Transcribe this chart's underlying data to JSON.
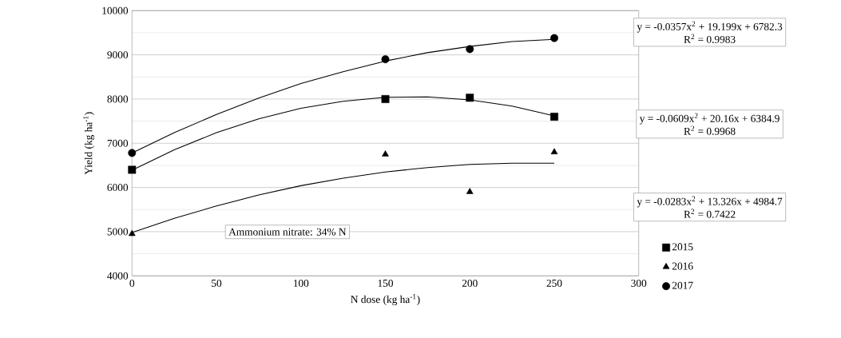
{
  "chart_data": {
    "type": "scatter",
    "xlabel": "N dose (kg ha$^{-1}$)",
    "ylabel": "Yield (kg ha$^{-1}$)",
    "xlim": [
      0,
      300
    ],
    "ylim": [
      4000,
      10000
    ],
    "xticks": [
      0,
      50,
      100,
      150,
      200,
      250,
      300
    ],
    "yticks": [
      4000,
      5000,
      6000,
      7000,
      8000,
      9000,
      10000
    ],
    "grid": "y",
    "legend": "right",
    "series": [
      {
        "name": "2015",
        "type": "scatter",
        "marker": "square",
        "color": "#000000",
        "x": [
          0,
          150,
          200,
          250
        ],
        "values": [
          6400,
          8000,
          8030,
          7600
        ]
      },
      {
        "name": "2016",
        "type": "scatter",
        "marker": "triangle",
        "color": "#000000",
        "x": [
          0,
          150,
          200,
          250
        ],
        "values": [
          4950,
          6750,
          5900,
          6800
        ]
      },
      {
        "name": "2017",
        "type": "scatter",
        "marker": "circle",
        "color": "#000000",
        "x": [
          0,
          150,
          200,
          250
        ],
        "values": [
          6780,
          8900,
          9130,
          9380
        ]
      },
      {
        "type": "line",
        "marker": "none",
        "color": "#000000",
        "x": [
          0,
          25,
          50,
          75,
          100,
          125,
          150,
          175,
          200,
          225,
          250
        ],
        "values": [
          6390,
          6850,
          7240,
          7550,
          7790,
          7950,
          8040,
          8050,
          7980,
          7840,
          7620
        ]
      },
      {
        "type": "line",
        "marker": "none",
        "color": "#000000",
        "x": [
          0,
          25,
          50,
          75,
          100,
          125,
          150,
          175,
          200,
          225,
          250
        ],
        "values": [
          4980,
          5300,
          5580,
          5830,
          6040,
          6210,
          6350,
          6450,
          6520,
          6550,
          6550
        ]
      },
      {
        "type": "line",
        "marker": "none",
        "color": "#000000",
        "x": [
          0,
          25,
          50,
          75,
          100,
          125,
          150,
          175,
          200,
          225,
          250
        ],
        "values": [
          6780,
          7240,
          7650,
          8020,
          8350,
          8620,
          8860,
          9050,
          9190,
          9300,
          9350
        ]
      }
    ],
    "annotations": [
      "y = -0.0357x$^{2}$ + 19.199x + 6782.3",
      "R$^{2}$ = 0.9983",
      "y = -0.0609x$^{2}$ + 20.16x + 6384.9",
      "R$^{2}$ = 0.9968",
      "y = -0.0283x$^{2}$ + 13.326x + 4984.7",
      "R$^{2}$ = 0.7422",
      "Ammonium nitrate: 34% N"
    ]
  }
}
